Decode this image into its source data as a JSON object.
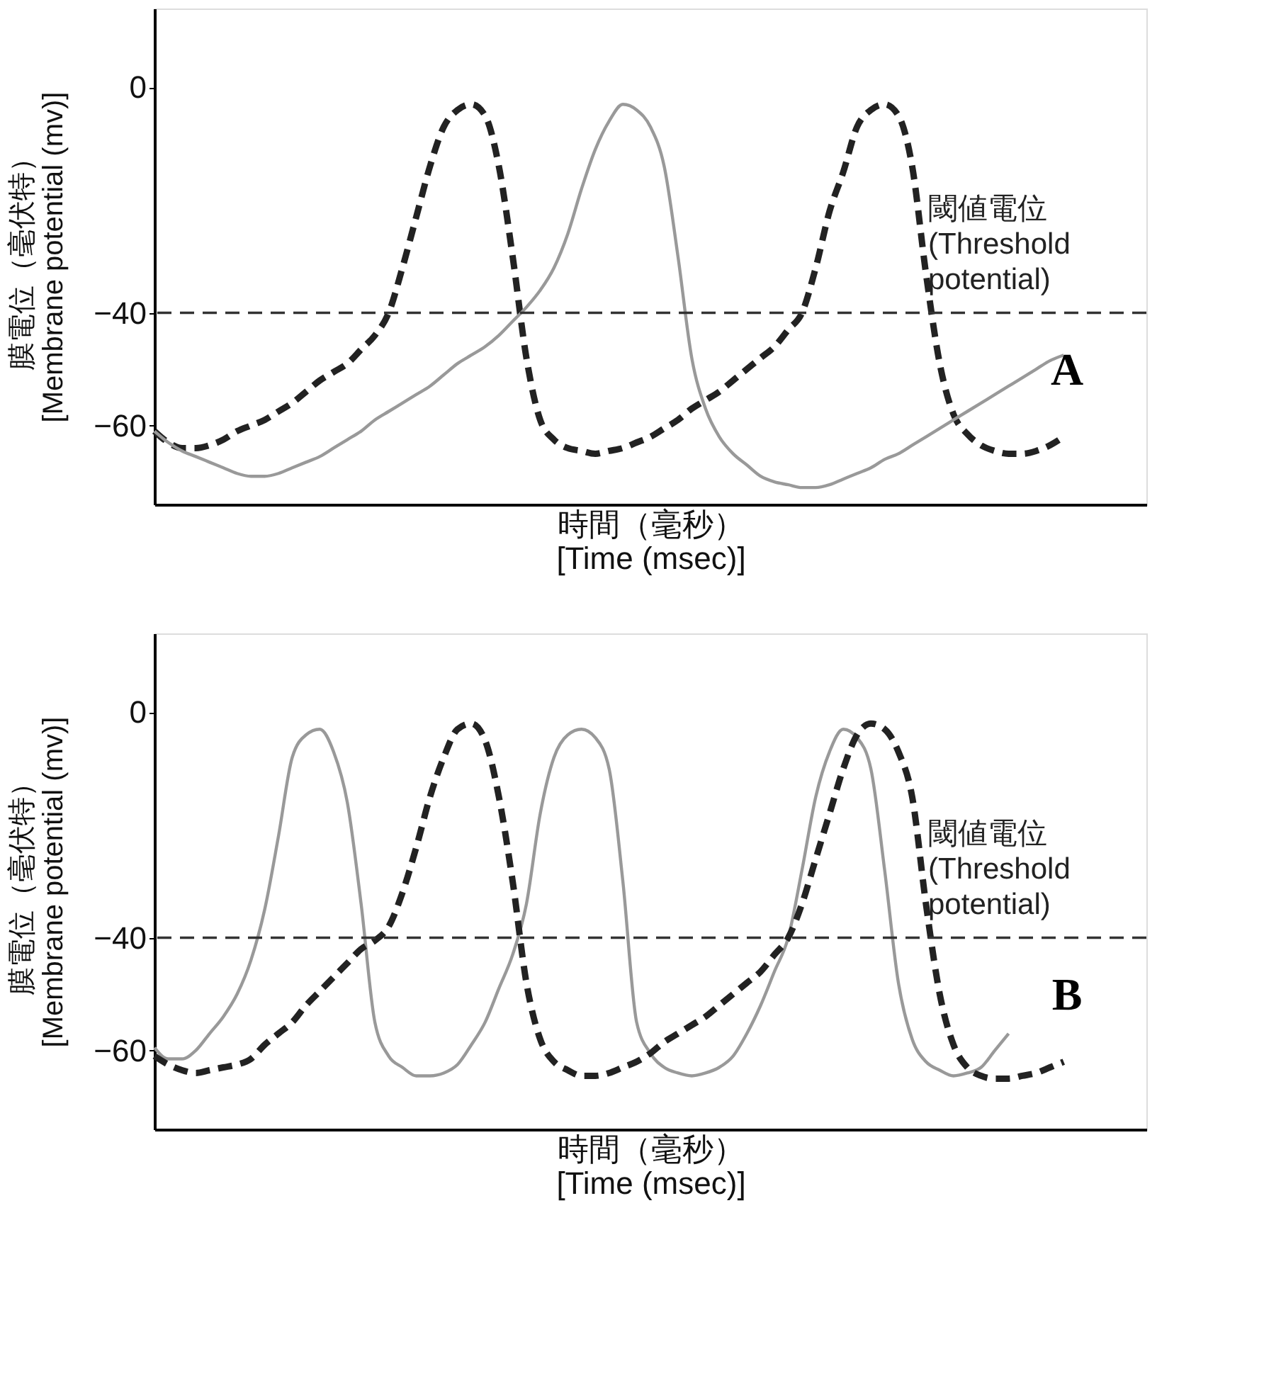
{
  "chart_data": [
    {
      "type": "line",
      "xlabel": "時間（毫秒）\n[Time (msec)]",
      "ylabel": "膜電位（毫伏特）\n[Membrane potential (mv)]",
      "categories": [
        null,
        null,
        null,
        null,
        null,
        null,
        null,
        null,
        null,
        null,
        null,
        null,
        null,
        null,
        null,
        null,
        null,
        null,
        null,
        null,
        null,
        null,
        null,
        null,
        null,
        null,
        null,
        null,
        null,
        null,
        null,
        null,
        null,
        null,
        null,
        null,
        null,
        null,
        null,
        null,
        null,
        null,
        null,
        null,
        null,
        null,
        null,
        null,
        null,
        null,
        null,
        null,
        null,
        null,
        null,
        null,
        null,
        null,
        null,
        null,
        null,
        null,
        null,
        null,
        null,
        null,
        null,
        null,
        null,
        null,
        null,
        null,
        null
      ],
      "series": [
        {
          "color": "#222222",
          "line_style": "dashed",
          "values": [
            -61,
            -63,
            -64,
            -64,
            -63.5,
            -62.5,
            -61,
            -60,
            -59,
            -57.5,
            -56,
            -54,
            -52,
            -50.5,
            -49,
            -46.5,
            -44,
            -40,
            -32,
            -23,
            -14,
            -7,
            -4,
            -3,
            -5,
            -14,
            -30,
            -48,
            -59,
            -62.5,
            -64,
            -64.5,
            -65,
            -64.5,
            -64,
            -63,
            -62,
            -60.5,
            -59,
            -57,
            -55.5,
            -54,
            -52,
            -50,
            -48,
            -46,
            -43,
            -40,
            -32,
            -22,
            -15,
            -7,
            -4,
            -3,
            -5,
            -14,
            -33,
            -49,
            -58,
            -61.5,
            -63.5,
            -64.5,
            -65,
            -65,
            -64.5,
            -63.5,
            -62,
            null,
            null,
            null,
            null,
            null,
            null
          ]
        },
        {
          "color": "#999999",
          "line_style": "solid",
          "values": [
            -61,
            -63,
            -64.5,
            -65.5,
            -66.5,
            -67.5,
            -68.5,
            -69,
            -69,
            -68.5,
            -67.5,
            -66.5,
            -65.5,
            -64,
            -62.5,
            -61,
            -59,
            -57.5,
            -56,
            -54.5,
            -53,
            -51,
            -49,
            -47.5,
            -46,
            -44,
            -41.5,
            -39,
            -36,
            -32,
            -26,
            -18,
            -11,
            -6,
            -3,
            -4,
            -7,
            -14,
            -30,
            -48,
            -57,
            -62,
            -65,
            -67,
            -69,
            -70,
            -70.5,
            -71,
            -71,
            -70.5,
            -69.5,
            -68.5,
            -67.5,
            -66,
            -65,
            -63.5,
            -62,
            -60.5,
            -59,
            -57.5,
            -56,
            -54.5,
            -53,
            -51.5,
            -50,
            -48.5,
            -47.5,
            null,
            null,
            null,
            null,
            null,
            null
          ]
        }
      ],
      "ylim": [
        -74,
        14
      ],
      "yticks": [
        0,
        -40,
        -60
      ],
      "tick_labels": "y",
      "ref_lines": [
        {
          "axis": "y",
          "value": -40,
          "label": "閾値電位\n(Threshold\npotential)",
          "line_style": "dashed",
          "color": "#333333"
        }
      ],
      "annotations": [
        "A"
      ]
    },
    {
      "type": "line",
      "xlabel": "時間（毫秒）\n[Time (msec)]",
      "ylabel": "膜電位（毫伏特）\n[Membrane potential (mv)]",
      "categories": [
        null,
        null,
        null,
        null,
        null,
        null,
        null,
        null,
        null,
        null,
        null,
        null,
        null,
        null,
        null,
        null,
        null,
        null,
        null,
        null,
        null,
        null,
        null,
        null,
        null,
        null,
        null,
        null,
        null,
        null,
        null,
        null,
        null,
        null,
        null,
        null,
        null,
        null,
        null,
        null,
        null,
        null,
        null,
        null,
        null,
        null,
        null,
        null,
        null,
        null,
        null,
        null,
        null,
        null,
        null,
        null,
        null,
        null,
        null,
        null,
        null,
        null,
        null,
        null,
        null,
        null,
        null,
        null,
        null,
        null,
        null,
        null,
        null
      ],
      "series": [
        {
          "color": "#999999",
          "line_style": "solid",
          "values": [
            -59.5,
            -61.5,
            -61.5,
            -60,
            -57,
            -54,
            -50,
            -44,
            -35,
            -22,
            -8,
            -4,
            -3,
            -7,
            -16,
            -34,
            -55,
            -61,
            -63,
            -64.5,
            -64.5,
            -64,
            -62.5,
            -59,
            -55,
            -49,
            -43,
            -34,
            -18,
            -8,
            -4,
            -3,
            -4.5,
            -10,
            -30,
            -55,
            -60.5,
            -63,
            -64,
            -64.5,
            -64,
            -63,
            -61,
            -57,
            -52,
            -46,
            -40,
            -28,
            -15,
            -7,
            -3,
            -4.5,
            -10,
            -28,
            -48,
            -58,
            -62,
            -63.5,
            -64.5,
            -64,
            -63,
            -60,
            -57,
            null,
            null,
            null,
            null,
            null,
            null,
            null,
            null,
            null,
            null
          ]
        },
        {
          "color": "#222222",
          "line_style": "dashed",
          "values": [
            -61,
            -62.5,
            -63.5,
            -64,
            -63.5,
            -63,
            -62.5,
            -61.5,
            -59,
            -57,
            -55,
            -52,
            -49.5,
            -47,
            -44.5,
            -42,
            -40.5,
            -38,
            -32,
            -24,
            -15,
            -8,
            -3,
            -2,
            -5,
            -15,
            -30,
            -48,
            -58,
            -62,
            -63.5,
            -64.5,
            -64.5,
            -64,
            -63,
            -62,
            -60.5,
            -58.5,
            -57,
            -55.5,
            -54,
            -52,
            -50,
            -48,
            -46,
            -43,
            -40,
            -34,
            -26,
            -18,
            -10,
            -4,
            -2,
            -3,
            -7,
            -15,
            -34,
            -50,
            -59,
            -63,
            -64.5,
            -65,
            -65,
            -64.5,
            -64,
            -63,
            -62,
            null,
            null,
            null,
            null,
            null,
            null
          ]
        }
      ],
      "ylim": [
        -74,
        14
      ],
      "yticks": [
        0,
        -40,
        -60
      ],
      "tick_labels": "y",
      "ref_lines": [
        {
          "axis": "y",
          "value": -40,
          "label": "閾値電位\n(Threshold\npotential)",
          "line_style": "dashed",
          "color": "#333333"
        }
      ],
      "annotations": [
        "B"
      ]
    }
  ]
}
